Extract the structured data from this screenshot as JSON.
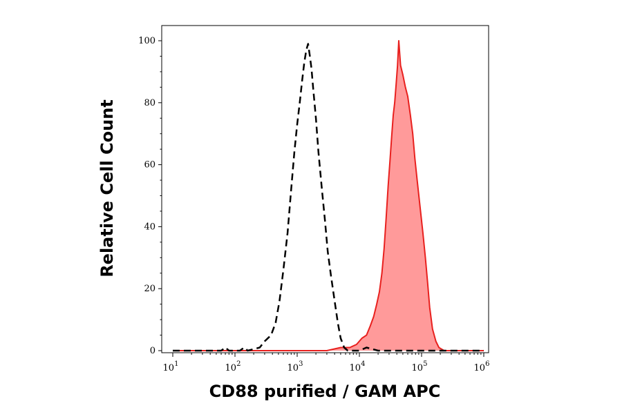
{
  "chart_data": {
    "type": "area",
    "xlabel": "CD88 purified / GAM APC",
    "ylabel": "Relative Cell Count",
    "x_scale": "log",
    "xlim": [
      10,
      1000000
    ],
    "ylim": [
      0,
      100
    ],
    "x_ticks": [
      {
        "value": 10,
        "base": "10",
        "exp": "1"
      },
      {
        "value": 100,
        "base": "10",
        "exp": "2"
      },
      {
        "value": 1000,
        "base": "10",
        "exp": "3"
      },
      {
        "value": 10000,
        "base": "10",
        "exp": "4"
      },
      {
        "value": 100000,
        "base": "10",
        "exp": "5"
      },
      {
        "value": 1000000,
        "base": "10",
        "exp": "6"
      }
    ],
    "y_ticks": [
      0,
      20,
      40,
      60,
      80,
      100
    ],
    "grid": false,
    "legend": "none",
    "series": [
      {
        "style": "dashed",
        "color": "#000000",
        "fill": "none",
        "points": [
          [
            10,
            0
          ],
          [
            60,
            0
          ],
          [
            70,
            1
          ],
          [
            80,
            0
          ],
          [
            120,
            0
          ],
          [
            140,
            1
          ],
          [
            160,
            0
          ],
          [
            250,
            1
          ],
          [
            300,
            3
          ],
          [
            380,
            5
          ],
          [
            450,
            9
          ],
          [
            520,
            16
          ],
          [
            600,
            26
          ],
          [
            700,
            38
          ],
          [
            800,
            52
          ],
          [
            900,
            64
          ],
          [
            1000,
            73
          ],
          [
            1100,
            80
          ],
          [
            1200,
            87
          ],
          [
            1300,
            93
          ],
          [
            1400,
            97
          ],
          [
            1500,
            99
          ],
          [
            1600,
            95
          ],
          [
            1700,
            91
          ],
          [
            1800,
            85
          ],
          [
            2000,
            75
          ],
          [
            2200,
            64
          ],
          [
            2500,
            52
          ],
          [
            2800,
            42
          ],
          [
            3100,
            32
          ],
          [
            3500,
            24
          ],
          [
            4000,
            16
          ],
          [
            4500,
            9
          ],
          [
            5000,
            4
          ],
          [
            5700,
            1
          ],
          [
            6500,
            0
          ],
          [
            10000,
            0
          ],
          [
            13000,
            1
          ],
          [
            20000,
            0
          ],
          [
            1000000,
            0
          ]
        ]
      },
      {
        "style": "solid",
        "color": "#e8201e",
        "fill": "#ff9a9a",
        "points": [
          [
            10,
            0
          ],
          [
            3000,
            0
          ],
          [
            5000,
            1
          ],
          [
            7000,
            1
          ],
          [
            9000,
            2
          ],
          [
            11000,
            4
          ],
          [
            13000,
            5
          ],
          [
            15000,
            8
          ],
          [
            17000,
            11
          ],
          [
            19000,
            15
          ],
          [
            21000,
            19
          ],
          [
            23000,
            25
          ],
          [
            25000,
            33
          ],
          [
            27000,
            43
          ],
          [
            29000,
            53
          ],
          [
            31000,
            61
          ],
          [
            33000,
            69
          ],
          [
            35000,
            76
          ],
          [
            37000,
            80
          ],
          [
            39000,
            86
          ],
          [
            41000,
            92
          ],
          [
            43000,
            100
          ],
          [
            46000,
            92
          ],
          [
            50000,
            89
          ],
          [
            55000,
            85
          ],
          [
            60000,
            82
          ],
          [
            66000,
            76
          ],
          [
            72000,
            70
          ],
          [
            78000,
            62
          ],
          [
            85000,
            55
          ],
          [
            95000,
            46
          ],
          [
            105000,
            38
          ],
          [
            115000,
            30
          ],
          [
            125000,
            22
          ],
          [
            135000,
            14
          ],
          [
            150000,
            7
          ],
          [
            170000,
            3
          ],
          [
            190000,
            1
          ],
          [
            230000,
            0
          ],
          [
            1000000,
            0
          ]
        ]
      }
    ]
  }
}
